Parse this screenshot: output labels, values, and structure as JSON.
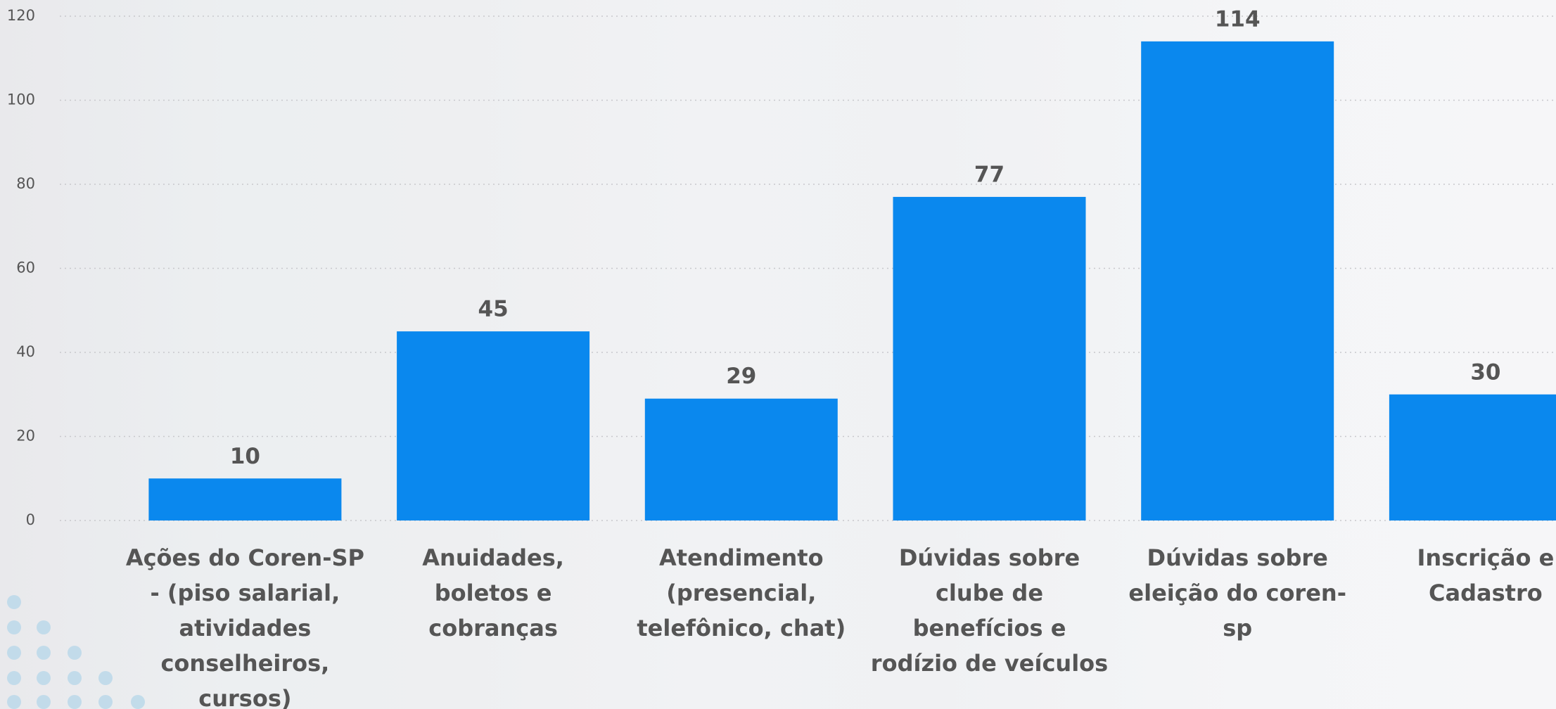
{
  "chart_data": {
    "type": "bar",
    "categories": [
      "Ações do Coren-SP - (piso salarial, atividades conselheiros, cursos)",
      "Anuidades, boletos e cobranças",
      "Atendimento (presencial, telefônico, chat)",
      "Dúvidas sobre clube de benefícios e rodízio de veículos",
      "Dúvidas sobre eleição do coren-sp",
      "Inscrição e Cadastro"
    ],
    "values": [
      10,
      45,
      29,
      77,
      114,
      30
    ],
    "color": "#0a88ee",
    "ylim": [
      0,
      120
    ],
    "yticks": [
      0,
      20,
      40,
      60,
      80,
      100,
      120
    ],
    "grid": true
  }
}
